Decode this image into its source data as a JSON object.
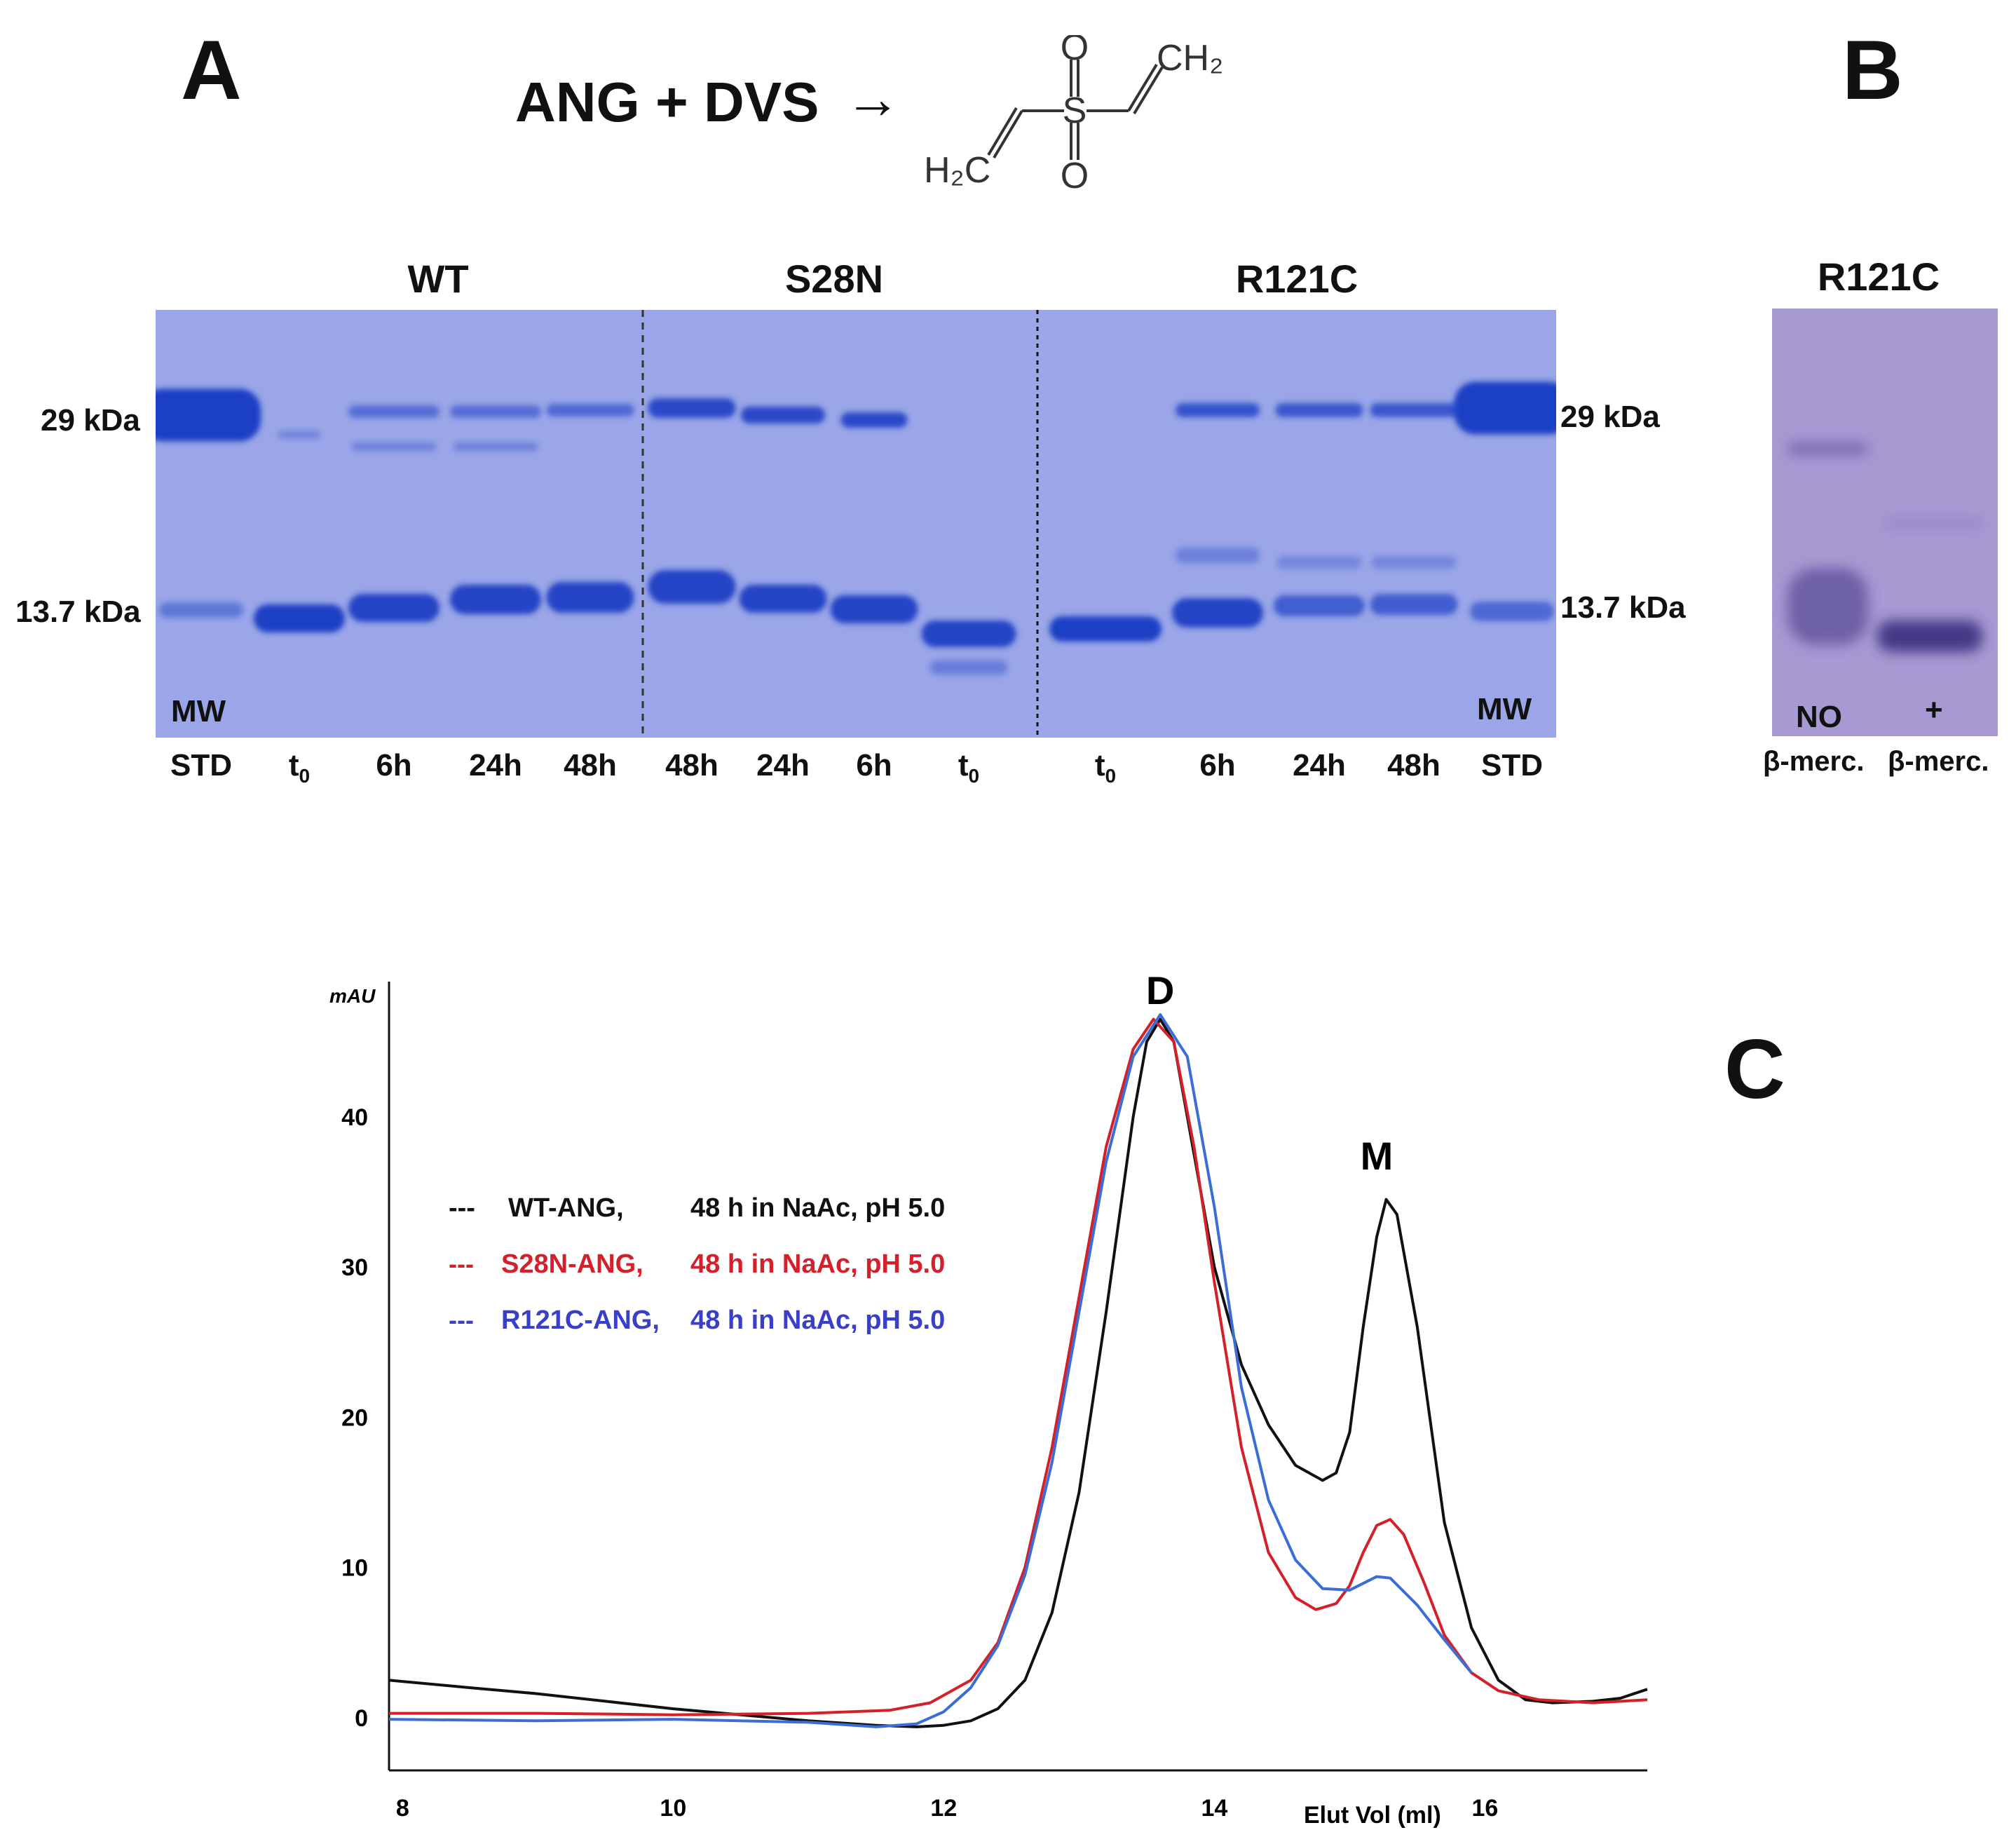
{
  "panels": {
    "a": "A",
    "b": "B",
    "c": "C"
  },
  "reaction": {
    "text": "ANG + DVS",
    "arrow": "→",
    "struct_o_top": "O",
    "struct_o_bottom": "O",
    "struct_s": "S",
    "struct_ch2": "CH₂",
    "struct_h2c": "H₂C"
  },
  "gel_a": {
    "groups": [
      {
        "label": "WT"
      },
      {
        "label": "S28N"
      },
      {
        "label": "R121C"
      }
    ],
    "left_markers": [
      "29 kDa",
      "13.7 kDa"
    ],
    "right_markers": [
      "29 kDa",
      "13.7 kDa"
    ],
    "mw_left": "MW",
    "mw_right": "MW",
    "lanes": [
      "STD",
      "t0",
      "6h",
      "24h",
      "48h",
      "48h",
      "24h",
      "6h",
      "t0",
      "t0",
      "6h",
      "24h",
      "48h",
      "STD"
    ],
    "colors": {
      "gel": "#9aa6e8",
      "band": "#1d3fc4"
    }
  },
  "gel_b": {
    "title": "R121C",
    "lane_marks": [
      "NO",
      "+"
    ],
    "lane_labels": [
      "β-merc.",
      "β-merc."
    ],
    "colors": {
      "gel": "#a79ad2",
      "band": "#4b3f88"
    }
  },
  "chart_data": {
    "type": "line",
    "ylabel": "mAU",
    "xlabel": "Elut Vol (ml)",
    "xlim": [
      7.9,
      17.2
    ],
    "ylim": [
      -3.5,
      49
    ],
    "x_ticks": [
      8,
      10,
      12,
      14,
      16
    ],
    "y_ticks": [
      0,
      10,
      20,
      30,
      40
    ],
    "annotations": [
      {
        "text": "D",
        "x": 13.6,
        "y": 47.5
      },
      {
        "text": "M",
        "x": 15.2,
        "y": 36.5
      }
    ],
    "legend": [
      {
        "dash": "---",
        "name": "WT-ANG,",
        "condition": "48 h in NaAc, pH 5.0",
        "color": "#111111"
      },
      {
        "dash": "---",
        "name": "S28N-ANG,",
        "condition": "48 h in NaAc, pH 5.0",
        "color": "#d4202a"
      },
      {
        "dash": "---",
        "name": "R121C-ANG,",
        "condition": "48 h in NaAc, pH 5.0",
        "color": "#3a3fc9"
      }
    ],
    "series": [
      {
        "name": "WT-ANG",
        "color": "#111111",
        "points": [
          [
            7.9,
            2.5
          ],
          [
            8.5,
            2.0
          ],
          [
            9.0,
            1.6
          ],
          [
            9.5,
            1.1
          ],
          [
            10.0,
            0.6
          ],
          [
            10.5,
            0.2
          ],
          [
            11.0,
            -0.2
          ],
          [
            11.5,
            -0.5
          ],
          [
            11.8,
            -0.6
          ],
          [
            12.0,
            -0.5
          ],
          [
            12.2,
            -0.2
          ],
          [
            12.4,
            0.6
          ],
          [
            12.6,
            2.5
          ],
          [
            12.8,
            7
          ],
          [
            13.0,
            15
          ],
          [
            13.2,
            27
          ],
          [
            13.4,
            40
          ],
          [
            13.5,
            45
          ],
          [
            13.6,
            46.5
          ],
          [
            13.7,
            45
          ],
          [
            13.8,
            40
          ],
          [
            14.0,
            30
          ],
          [
            14.2,
            23.5
          ],
          [
            14.4,
            19.5
          ],
          [
            14.6,
            16.8
          ],
          [
            14.8,
            15.8
          ],
          [
            14.9,
            16.3
          ],
          [
            15.0,
            19
          ],
          [
            15.1,
            26
          ],
          [
            15.2,
            32
          ],
          [
            15.27,
            34.5
          ],
          [
            15.35,
            33.5
          ],
          [
            15.5,
            26
          ],
          [
            15.7,
            13
          ],
          [
            15.9,
            6
          ],
          [
            16.1,
            2.5
          ],
          [
            16.3,
            1.2
          ],
          [
            16.5,
            1.0
          ],
          [
            16.8,
            1.1
          ],
          [
            17.0,
            1.3
          ],
          [
            17.2,
            1.9
          ]
        ]
      },
      {
        "name": "S28N-ANG",
        "color": "#d4202a",
        "points": [
          [
            7.9,
            0.3
          ],
          [
            9.0,
            0.3
          ],
          [
            10.0,
            0.2
          ],
          [
            11.0,
            0.3
          ],
          [
            11.6,
            0.5
          ],
          [
            11.9,
            1.0
          ],
          [
            12.2,
            2.5
          ],
          [
            12.4,
            5
          ],
          [
            12.6,
            10
          ],
          [
            12.8,
            18
          ],
          [
            13.0,
            28
          ],
          [
            13.2,
            38
          ],
          [
            13.4,
            44.5
          ],
          [
            13.55,
            46.5
          ],
          [
            13.7,
            45
          ],
          [
            13.85,
            38
          ],
          [
            14.0,
            29
          ],
          [
            14.2,
            18
          ],
          [
            14.4,
            11
          ],
          [
            14.6,
            8
          ],
          [
            14.75,
            7.2
          ],
          [
            14.9,
            7.6
          ],
          [
            15.0,
            8.8
          ],
          [
            15.1,
            11
          ],
          [
            15.2,
            12.8
          ],
          [
            15.3,
            13.2
          ],
          [
            15.4,
            12.2
          ],
          [
            15.55,
            9
          ],
          [
            15.7,
            5.5
          ],
          [
            15.9,
            3
          ],
          [
            16.1,
            1.8
          ],
          [
            16.4,
            1.2
          ],
          [
            16.8,
            1.0
          ],
          [
            17.2,
            1.2
          ]
        ]
      },
      {
        "name": "R121C-ANG",
        "color": "#3a6ed6",
        "points": [
          [
            7.9,
            -0.1
          ],
          [
            9.0,
            -0.2
          ],
          [
            10.0,
            -0.1
          ],
          [
            11.0,
            -0.3
          ],
          [
            11.5,
            -0.6
          ],
          [
            11.8,
            -0.4
          ],
          [
            12.0,
            0.4
          ],
          [
            12.2,
            2
          ],
          [
            12.4,
            4.8
          ],
          [
            12.6,
            9.5
          ],
          [
            12.8,
            17
          ],
          [
            13.0,
            27
          ],
          [
            13.2,
            37
          ],
          [
            13.4,
            44
          ],
          [
            13.6,
            46.8
          ],
          [
            13.8,
            44
          ],
          [
            14.0,
            34
          ],
          [
            14.2,
            22
          ],
          [
            14.4,
            14.5
          ],
          [
            14.6,
            10.5
          ],
          [
            14.8,
            8.6
          ],
          [
            15.0,
            8.5
          ],
          [
            15.2,
            9.4
          ],
          [
            15.3,
            9.3
          ],
          [
            15.5,
            7.5
          ],
          [
            15.7,
            5.2
          ],
          [
            15.9,
            3.0
          ]
        ]
      }
    ]
  }
}
